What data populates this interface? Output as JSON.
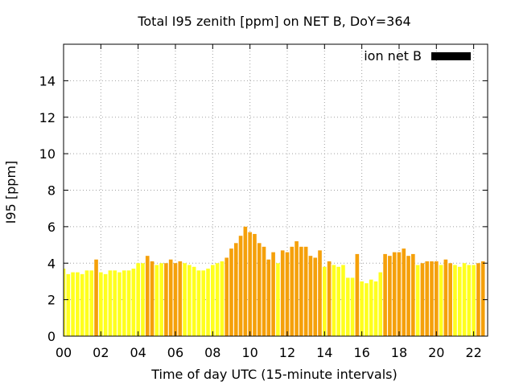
{
  "chart_data": {
    "type": "bar",
    "title": "Total I95 zenith [ppm] on NET B, DoY=364",
    "xlabel": "Time of day UTC (15-minute intervals)",
    "ylabel": "I95 [ppm]",
    "xlim": [
      0,
      22.75
    ],
    "ylim": [
      0,
      16
    ],
    "x_ticks": [
      0,
      2,
      4,
      6,
      8,
      10,
      12,
      14,
      16,
      18,
      20,
      22
    ],
    "x_tick_labels": [
      "00",
      "02",
      "04",
      "06",
      "08",
      "10",
      "12",
      "14",
      "16",
      "18",
      "20",
      "22"
    ],
    "y_ticks": [
      0,
      2,
      4,
      6,
      8,
      10,
      12,
      14
    ],
    "y_tick_labels": [
      "0",
      "2",
      "4",
      "6",
      "8",
      "10",
      "12",
      "14"
    ],
    "grid": true,
    "legend": {
      "label": "ion net B",
      "position": "top-right",
      "color": "#000000"
    },
    "colors": {
      "low": "#ffff1e",
      "elevated": "#f5a00a"
    },
    "series": [
      {
        "name": "ion net B",
        "x": [
          0,
          0.25,
          0.5,
          0.75,
          1,
          1.25,
          1.5,
          1.75,
          2,
          2.25,
          2.5,
          2.75,
          3,
          3.25,
          3.5,
          3.75,
          4,
          4.25,
          4.5,
          4.75,
          5,
          5.25,
          5.5,
          5.75,
          6,
          6.25,
          6.5,
          6.75,
          7,
          7.25,
          7.5,
          7.75,
          8,
          8.25,
          8.5,
          8.75,
          9,
          9.25,
          9.5,
          9.75,
          10,
          10.25,
          10.5,
          10.75,
          11,
          11.25,
          11.5,
          11.75,
          12,
          12.25,
          12.5,
          12.75,
          13,
          13.25,
          13.5,
          13.75,
          14,
          14.25,
          14.5,
          14.75,
          15,
          15.25,
          15.5,
          15.75,
          16,
          16.25,
          16.5,
          16.75,
          17,
          17.25,
          17.5,
          17.75,
          18,
          18.25,
          18.5,
          18.75,
          19,
          19.25,
          19.5,
          19.75,
          20,
          20.25,
          20.5,
          20.75,
          21,
          21.25,
          21.5,
          21.75,
          22,
          22.25,
          22.5
        ],
        "values": [
          3.7,
          3.4,
          3.5,
          3.5,
          3.4,
          3.6,
          3.6,
          4.2,
          3.5,
          3.4,
          3.6,
          3.6,
          3.5,
          3.6,
          3.6,
          3.7,
          4.0,
          4.0,
          4.4,
          4.1,
          3.9,
          4.0,
          4.0,
          4.2,
          4.0,
          4.1,
          4.0,
          3.9,
          3.8,
          3.6,
          3.6,
          3.7,
          3.9,
          4.0,
          4.1,
          4.3,
          4.8,
          5.1,
          5.5,
          6.0,
          5.7,
          5.6,
          5.1,
          4.9,
          4.2,
          4.6,
          4.0,
          4.7,
          4.6,
          4.9,
          5.2,
          4.9,
          4.9,
          4.4,
          4.3,
          4.7,
          3.8,
          4.1,
          3.9,
          3.8,
          3.9,
          3.2,
          3.2,
          4.5,
          3.0,
          2.9,
          3.1,
          3.0,
          3.5,
          4.5,
          4.4,
          4.6,
          4.6,
          4.8,
          4.4,
          4.5,
          3.9,
          4.0,
          4.1,
          4.1,
          4.1,
          3.9,
          4.2,
          4.0,
          3.9,
          3.8,
          4.0,
          3.9,
          3.9,
          4.0,
          4.1
        ],
        "levels": [
          "low",
          "low",
          "low",
          "low",
          "low",
          "low",
          "low",
          "elevated",
          "low",
          "low",
          "low",
          "low",
          "low",
          "low",
          "low",
          "low",
          "low",
          "low",
          "elevated",
          "elevated",
          "low",
          "low",
          "elevated",
          "elevated",
          "elevated",
          "elevated",
          "low",
          "low",
          "low",
          "low",
          "low",
          "low",
          "low",
          "low",
          "low",
          "elevated",
          "elevated",
          "elevated",
          "elevated",
          "elevated",
          "elevated",
          "elevated",
          "elevated",
          "elevated",
          "elevated",
          "elevated",
          "low",
          "elevated",
          "elevated",
          "elevated",
          "elevated",
          "elevated",
          "elevated",
          "elevated",
          "elevated",
          "elevated",
          "low",
          "elevated",
          "low",
          "low",
          "low",
          "low",
          "low",
          "elevated",
          "low",
          "low",
          "low",
          "low",
          "low",
          "elevated",
          "elevated",
          "elevated",
          "elevated",
          "elevated",
          "elevated",
          "elevated",
          "low",
          "elevated",
          "elevated",
          "elevated",
          "elevated",
          "low",
          "elevated",
          "elevated",
          "low",
          "low",
          "low",
          "low",
          "low",
          "elevated",
          "elevated"
        ]
      }
    ]
  }
}
